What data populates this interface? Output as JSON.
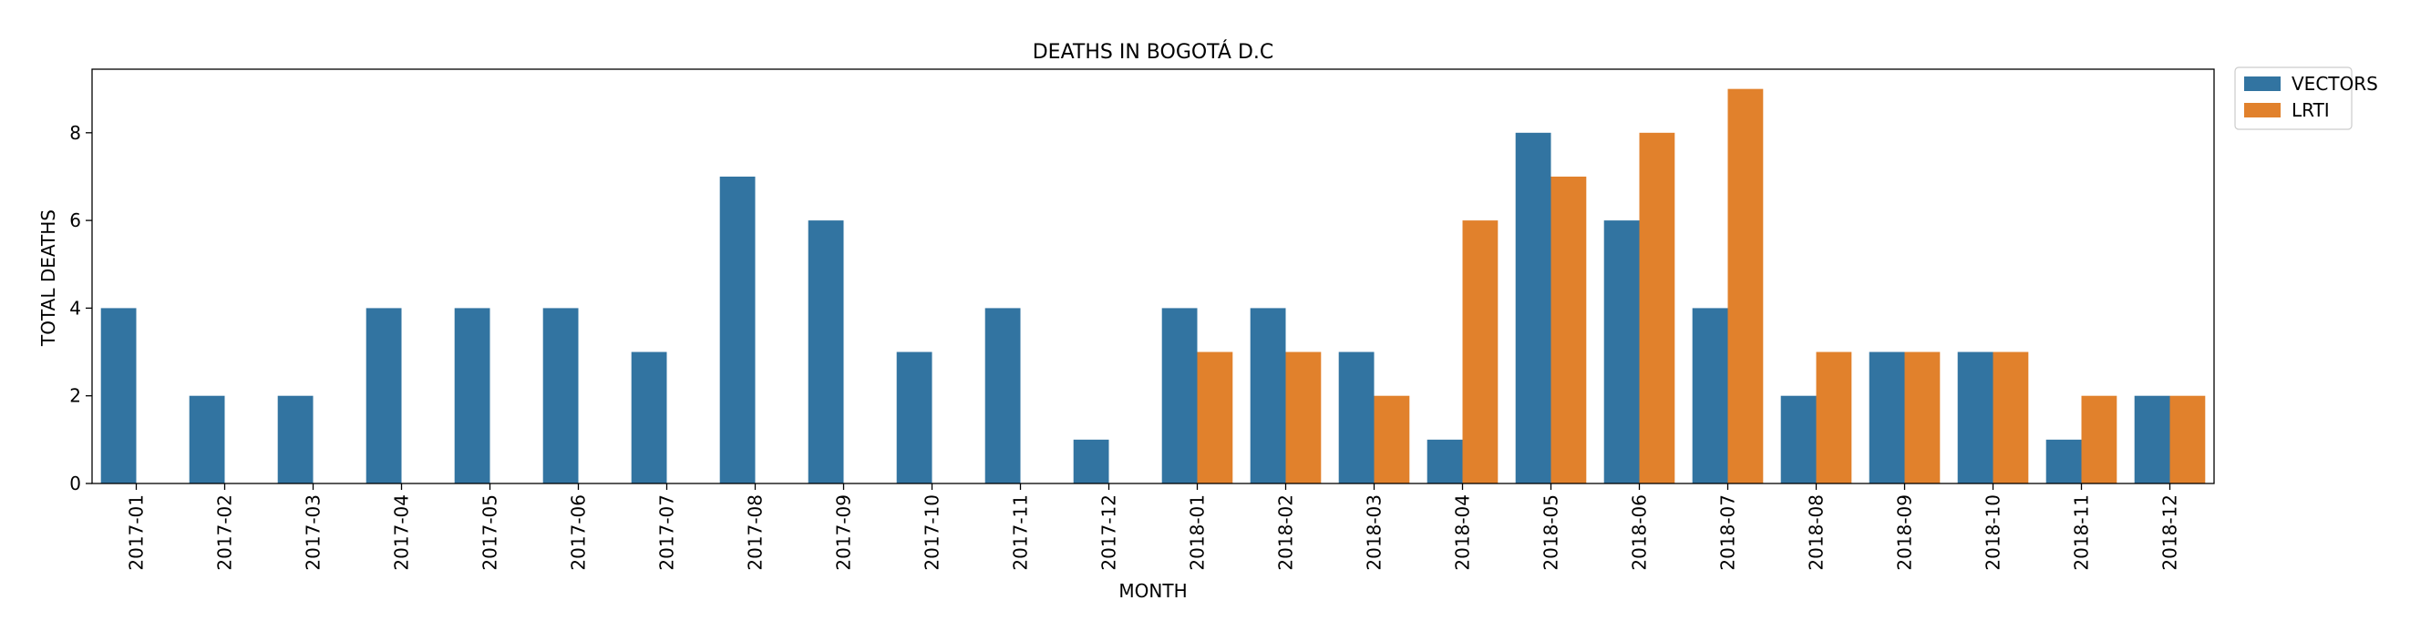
{
  "chart_data": {
    "type": "bar",
    "title": "DEATHS IN BOGOTÁ D.C",
    "xlabel": "MONTH",
    "ylabel": "TOTAL DEATHS",
    "ylim": [
      0,
      9.45
    ],
    "yticks": [
      "0",
      "2",
      "4",
      "6",
      "8"
    ],
    "grid": false,
    "legend_position": "outside-top-right",
    "categories": [
      "2017-01",
      "2017-02",
      "2017-03",
      "2017-04",
      "2017-05",
      "2017-06",
      "2017-07",
      "2017-08",
      "2017-09",
      "2017-10",
      "2017-11",
      "2017-12",
      "2018-01",
      "2018-02",
      "2018-03",
      "2018-04",
      "2018-05",
      "2018-06",
      "2018-07",
      "2018-08",
      "2018-09",
      "2018-10",
      "2018-11",
      "2018-12"
    ],
    "series": [
      {
        "name": "VECTORS",
        "color": "#3274a1",
        "values": [
          4,
          2,
          2,
          4,
          4,
          4,
          3,
          7,
          6,
          3,
          4,
          1,
          4,
          4,
          3,
          1,
          8,
          6,
          4,
          2,
          3,
          3,
          1,
          2
        ]
      },
      {
        "name": "LRTI",
        "color": "#e1812c",
        "values": [
          null,
          null,
          null,
          null,
          null,
          null,
          null,
          null,
          null,
          null,
          null,
          null,
          3,
          3,
          2,
          6,
          7,
          8,
          9,
          3,
          3,
          3,
          2,
          2
        ]
      }
    ]
  }
}
